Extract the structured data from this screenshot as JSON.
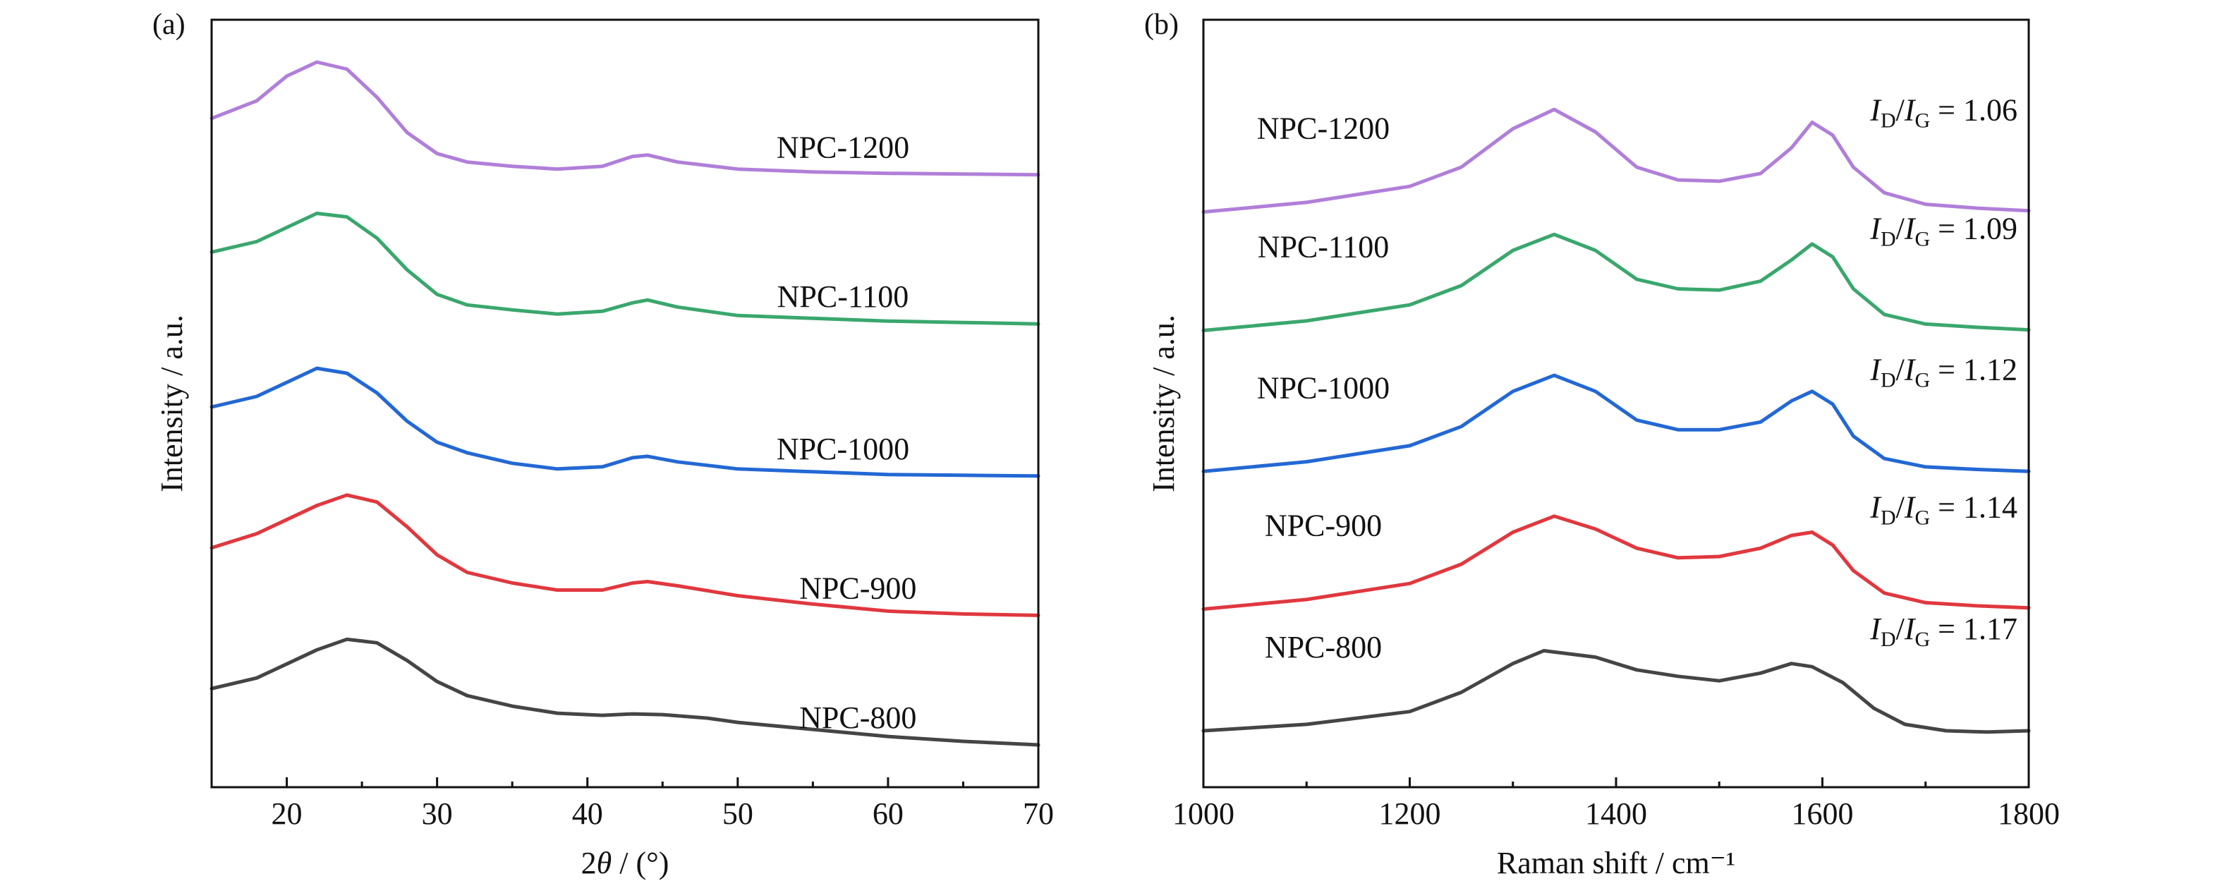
{
  "chart_data": [
    {
      "panel_label": "(a)",
      "type": "line",
      "xlabel_prefix": "2",
      "xlabel_symbol": "θ",
      "xlabel_suffix": " / (°)",
      "ylabel": "Intensity / a.u.",
      "xlim": [
        15,
        70
      ],
      "xticks": [
        20,
        30,
        40,
        50,
        60,
        70
      ],
      "yticks_shown": false,
      "grid": false,
      "series": [
        {
          "name": "NPC-1200",
          "color": "#b07fd9",
          "label_x": 57,
          "points": [
            [
              15,
              0.91
            ],
            [
              18,
              0.935
            ],
            [
              20,
              0.97
            ],
            [
              22,
              0.99
            ],
            [
              24,
              0.98
            ],
            [
              26,
              0.94
            ],
            [
              28,
              0.89
            ],
            [
              30,
              0.86
            ],
            [
              32,
              0.848
            ],
            [
              35,
              0.842
            ],
            [
              38,
              0.838
            ],
            [
              41,
              0.842
            ],
            [
              43,
              0.856
            ],
            [
              44,
              0.858
            ],
            [
              46,
              0.848
            ],
            [
              50,
              0.838
            ],
            [
              55,
              0.834
            ],
            [
              60,
              0.832
            ],
            [
              65,
              0.831
            ],
            [
              70,
              0.83
            ]
          ]
        },
        {
          "name": "NPC-1100",
          "color": "#3aa76d",
          "label_x": 57,
          "points": [
            [
              15,
              0.72
            ],
            [
              18,
              0.735
            ],
            [
              20,
              0.755
            ],
            [
              22,
              0.775
            ],
            [
              24,
              0.77
            ],
            [
              26,
              0.74
            ],
            [
              28,
              0.695
            ],
            [
              30,
              0.66
            ],
            [
              32,
              0.645
            ],
            [
              35,
              0.638
            ],
            [
              38,
              0.632
            ],
            [
              41,
              0.636
            ],
            [
              43,
              0.648
            ],
            [
              44,
              0.652
            ],
            [
              46,
              0.642
            ],
            [
              50,
              0.63
            ],
            [
              55,
              0.626
            ],
            [
              60,
              0.622
            ],
            [
              65,
              0.62
            ],
            [
              70,
              0.618
            ]
          ]
        },
        {
          "name": "NPC-1000",
          "color": "#2368d4",
          "label_x": 57,
          "points": [
            [
              15,
              0.5
            ],
            [
              18,
              0.515
            ],
            [
              20,
              0.535
            ],
            [
              22,
              0.555
            ],
            [
              24,
              0.548
            ],
            [
              26,
              0.52
            ],
            [
              28,
              0.48
            ],
            [
              30,
              0.45
            ],
            [
              32,
              0.435
            ],
            [
              35,
              0.42
            ],
            [
              38,
              0.412
            ],
            [
              41,
              0.415
            ],
            [
              43,
              0.428
            ],
            [
              44,
              0.43
            ],
            [
              46,
              0.422
            ],
            [
              50,
              0.412
            ],
            [
              55,
              0.408
            ],
            [
              60,
              0.404
            ],
            [
              65,
              0.403
            ],
            [
              70,
              0.402
            ]
          ]
        },
        {
          "name": "NPC-900",
          "color": "#e0383e",
          "label_x": 58,
          "points": [
            [
              15,
              0.3
            ],
            [
              18,
              0.32
            ],
            [
              20,
              0.34
            ],
            [
              22,
              0.36
            ],
            [
              24,
              0.375
            ],
            [
              26,
              0.365
            ],
            [
              28,
              0.33
            ],
            [
              30,
              0.29
            ],
            [
              32,
              0.265
            ],
            [
              35,
              0.25
            ],
            [
              38,
              0.24
            ],
            [
              41,
              0.24
            ],
            [
              43,
              0.25
            ],
            [
              44,
              0.252
            ],
            [
              46,
              0.246
            ],
            [
              50,
              0.232
            ],
            [
              55,
              0.22
            ],
            [
              60,
              0.21
            ],
            [
              65,
              0.206
            ],
            [
              70,
              0.204
            ]
          ]
        },
        {
          "name": "NPC-800",
          "color": "#454545",
          "label_x": 58,
          "points": [
            [
              15,
              0.1
            ],
            [
              18,
              0.115
            ],
            [
              20,
              0.135
            ],
            [
              22,
              0.155
            ],
            [
              24,
              0.17
            ],
            [
              26,
              0.165
            ],
            [
              28,
              0.14
            ],
            [
              30,
              0.11
            ],
            [
              32,
              0.09
            ],
            [
              35,
              0.075
            ],
            [
              38,
              0.065
            ],
            [
              41,
              0.062
            ],
            [
              43,
              0.064
            ],
            [
              45,
              0.063
            ],
            [
              48,
              0.058
            ],
            [
              50,
              0.052
            ],
            [
              55,
              0.042
            ],
            [
              60,
              0.032
            ],
            [
              65,
              0.025
            ],
            [
              70,
              0.02
            ]
          ]
        }
      ]
    },
    {
      "panel_label": "(b)",
      "type": "line",
      "xlabel": "Raman shift / cm⁻¹",
      "ylabel": "Intensity / a.u.",
      "xlim": [
        1000,
        1800
      ],
      "xticks": [
        1000,
        1200,
        1400,
        1600,
        1800
      ],
      "yticks_shown": false,
      "grid": false,
      "series": [
        {
          "name": "NPC-1200",
          "color": "#b07fd9",
          "ratio": "1.06",
          "points": [
            [
              1000,
              0.81
            ],
            [
              1100,
              0.825
            ],
            [
              1200,
              0.85
            ],
            [
              1250,
              0.88
            ],
            [
              1300,
              0.94
            ],
            [
              1340,
              0.97
            ],
            [
              1380,
              0.935
            ],
            [
              1420,
              0.88
            ],
            [
              1460,
              0.86
            ],
            [
              1500,
              0.858
            ],
            [
              1540,
              0.87
            ],
            [
              1570,
              0.91
            ],
            [
              1590,
              0.95
            ],
            [
              1610,
              0.93
            ],
            [
              1630,
              0.88
            ],
            [
              1660,
              0.84
            ],
            [
              1700,
              0.822
            ],
            [
              1750,
              0.816
            ],
            [
              1800,
              0.812
            ]
          ]
        },
        {
          "name": "NPC-1100",
          "color": "#3aa76d",
          "ratio": "1.09",
          "points": [
            [
              1000,
              0.625
            ],
            [
              1100,
              0.64
            ],
            [
              1200,
              0.665
            ],
            [
              1250,
              0.695
            ],
            [
              1300,
              0.75
            ],
            [
              1340,
              0.775
            ],
            [
              1380,
              0.75
            ],
            [
              1420,
              0.705
            ],
            [
              1460,
              0.69
            ],
            [
              1500,
              0.688
            ],
            [
              1540,
              0.702
            ],
            [
              1570,
              0.735
            ],
            [
              1590,
              0.76
            ],
            [
              1610,
              0.74
            ],
            [
              1630,
              0.69
            ],
            [
              1660,
              0.65
            ],
            [
              1700,
              0.635
            ],
            [
              1750,
              0.63
            ],
            [
              1800,
              0.626
            ]
          ]
        },
        {
          "name": "NPC-1000",
          "color": "#2368d4",
          "ratio": "1.12",
          "points": [
            [
              1000,
              0.405
            ],
            [
              1100,
              0.42
            ],
            [
              1200,
              0.445
            ],
            [
              1250,
              0.475
            ],
            [
              1300,
              0.53
            ],
            [
              1340,
              0.555
            ],
            [
              1380,
              0.53
            ],
            [
              1420,
              0.485
            ],
            [
              1460,
              0.47
            ],
            [
              1500,
              0.47
            ],
            [
              1540,
              0.482
            ],
            [
              1570,
              0.515
            ],
            [
              1590,
              0.53
            ],
            [
              1610,
              0.51
            ],
            [
              1630,
              0.46
            ],
            [
              1660,
              0.425
            ],
            [
              1700,
              0.412
            ],
            [
              1750,
              0.408
            ],
            [
              1800,
              0.405
            ]
          ]
        },
        {
          "name": "NPC-900",
          "color": "#e0383e",
          "ratio": "1.14",
          "points": [
            [
              1000,
              0.19
            ],
            [
              1100,
              0.205
            ],
            [
              1200,
              0.23
            ],
            [
              1250,
              0.26
            ],
            [
              1300,
              0.31
            ],
            [
              1340,
              0.335
            ],
            [
              1380,
              0.315
            ],
            [
              1420,
              0.285
            ],
            [
              1460,
              0.27
            ],
            [
              1500,
              0.272
            ],
            [
              1540,
              0.285
            ],
            [
              1570,
              0.305
            ],
            [
              1590,
              0.31
            ],
            [
              1610,
              0.29
            ],
            [
              1630,
              0.25
            ],
            [
              1660,
              0.215
            ],
            [
              1700,
              0.2
            ],
            [
              1750,
              0.195
            ],
            [
              1800,
              0.192
            ]
          ]
        },
        {
          "name": "NPC-800",
          "color": "#454545",
          "ratio": "1.17",
          "points": [
            [
              1000,
              0.0
            ],
            [
              1100,
              0.01
            ],
            [
              1200,
              0.03
            ],
            [
              1250,
              0.06
            ],
            [
              1300,
              0.105
            ],
            [
              1330,
              0.125
            ],
            [
              1380,
              0.115
            ],
            [
              1420,
              0.095
            ],
            [
              1460,
              0.085
            ],
            [
              1500,
              0.078
            ],
            [
              1540,
              0.09
            ],
            [
              1570,
              0.105
            ],
            [
              1590,
              0.1
            ],
            [
              1620,
              0.075
            ],
            [
              1650,
              0.035
            ],
            [
              1680,
              0.01
            ],
            [
              1720,
              0.0
            ],
            [
              1760,
              -0.002
            ],
            [
              1800,
              0.0
            ]
          ]
        }
      ]
    }
  ]
}
